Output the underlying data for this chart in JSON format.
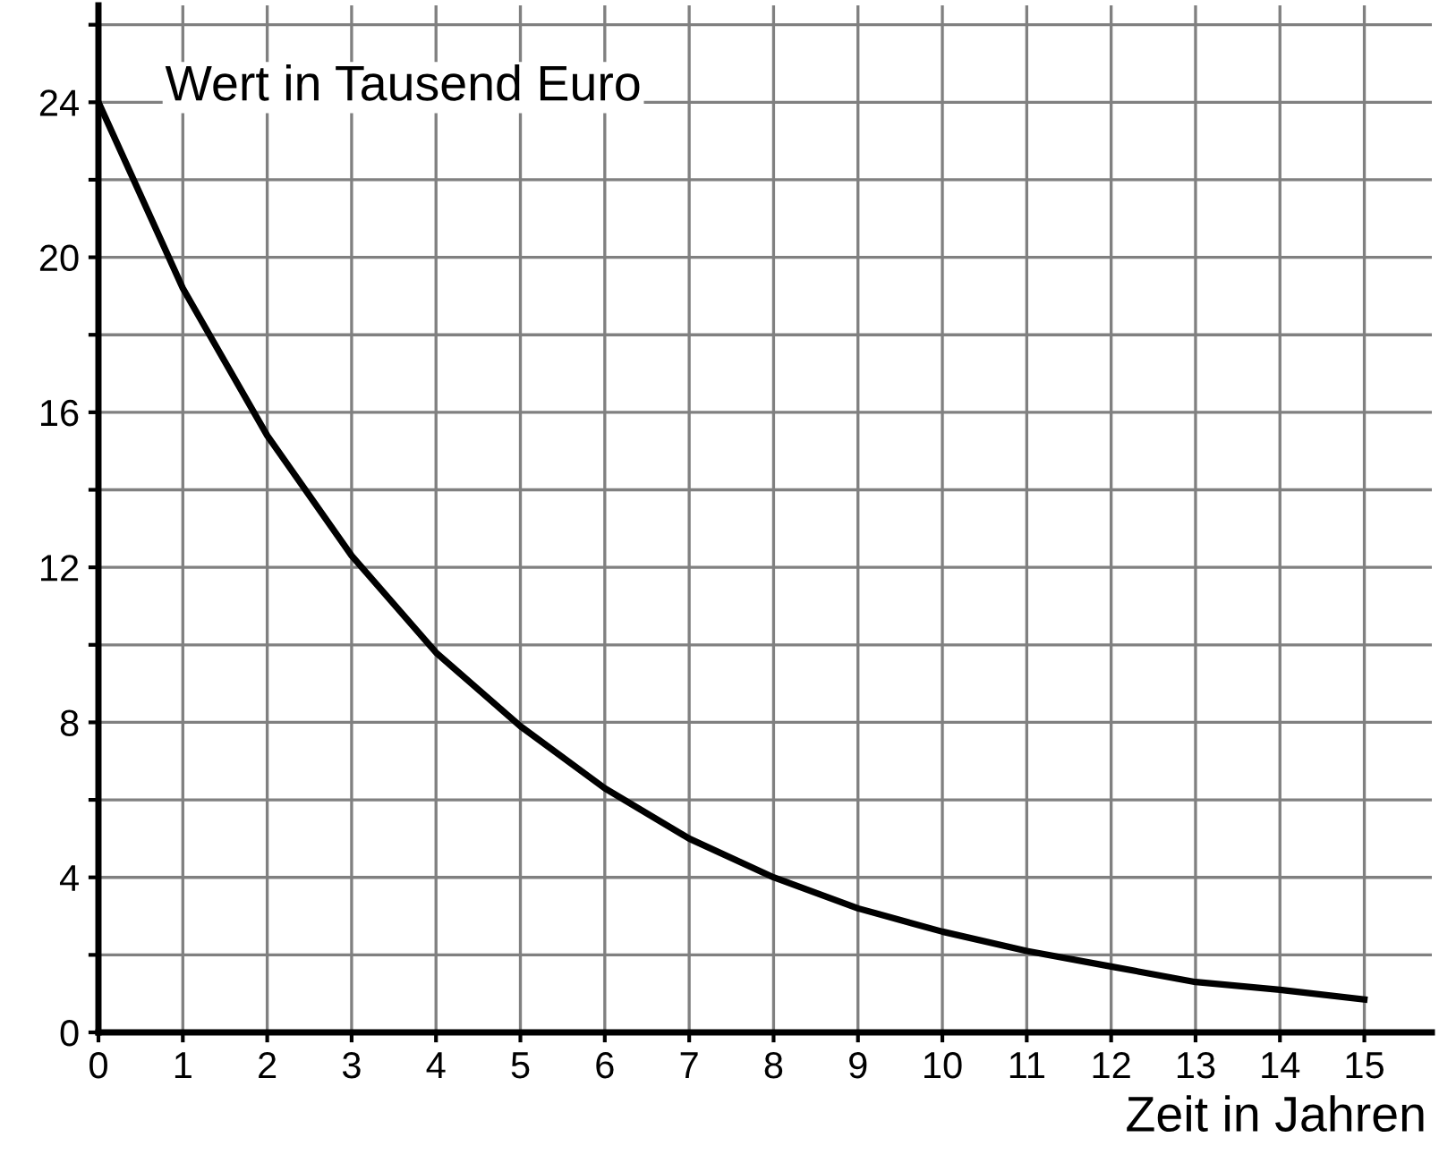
{
  "chart_data": {
    "type": "line",
    "ylabel": "Wert in Tausend Euro",
    "xlabel": "Zeit in Jahren",
    "x": [
      0,
      1,
      2,
      3,
      4,
      5,
      6,
      7,
      8,
      9,
      10,
      11,
      12,
      13,
      14,
      15
    ],
    "series": [
      {
        "color": "#000000",
        "values": [
          24,
          19.2,
          15.4,
          12.3,
          9.8,
          7.9,
          6.3,
          5.0,
          4.0,
          3.2,
          2.6,
          2.1,
          1.7,
          1.3,
          1.1,
          0.85
        ]
      }
    ],
    "xlim": [
      0,
      15.8
    ],
    "ylim": [
      0,
      26.5
    ],
    "xticks": [
      0,
      1,
      2,
      3,
      4,
      5,
      6,
      7,
      8,
      9,
      10,
      11,
      12,
      13,
      14,
      15
    ],
    "yticks": [
      0,
      {
        "value": 2,
        "label": null
      },
      4,
      {
        "value": 6,
        "label": null
      },
      8,
      {
        "value": 10,
        "label": null
      },
      12,
      {
        "value": 14,
        "label": null
      },
      16,
      {
        "value": 18,
        "label": null
      },
      20,
      {
        "value": 22,
        "label": null
      },
      24,
      {
        "value": 26,
        "label": null
      }
    ],
    "grid": true,
    "legend": false,
    "marker": "none",
    "line_style": "solid"
  }
}
